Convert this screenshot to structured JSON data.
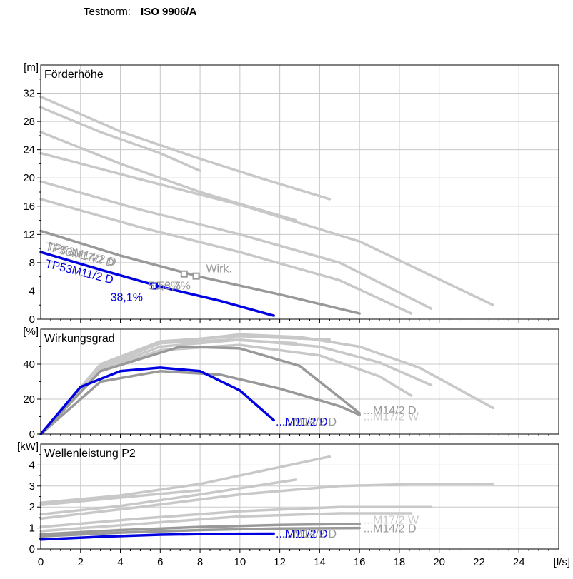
{
  "header": {
    "testnorm_label": "Testnorm:",
    "testnorm_value": "ISO 9906/A"
  },
  "colors": {
    "selected": "#0000e0",
    "compare": "#999999",
    "other": "#c8c8c8",
    "grid": "#c8c8c8",
    "axis": "#000000"
  },
  "chart_data": [
    {
      "type": "line",
      "title": "Förderhöhe",
      "ylabel": "[m]",
      "xlim": [
        0,
        26
      ],
      "ylim": [
        0,
        36
      ],
      "yticks": [
        0,
        4,
        8,
        12,
        16,
        20,
        24,
        28,
        32
      ],
      "grid": true,
      "series": [
        {
          "role": "other",
          "points": [
            [
              0,
              31.5
            ],
            [
              4,
              26.6
            ],
            [
              8,
              22.7
            ],
            [
              11,
              20
            ],
            [
              14.5,
              17
            ]
          ]
        },
        {
          "role": "other",
          "points": [
            [
              0,
              30
            ],
            [
              3,
              26.5
            ],
            [
              6,
              23.5
            ],
            [
              8,
              21
            ]
          ]
        },
        {
          "role": "other",
          "points": [
            [
              0,
              26.5
            ],
            [
              4,
              22
            ],
            [
              8,
              18
            ],
            [
              12.8,
              14
            ]
          ]
        },
        {
          "role": "other",
          "points": [
            [
              0,
              23.5
            ],
            [
              5,
              19.8
            ],
            [
              10,
              16.2
            ],
            [
              16,
              11
            ],
            [
              22.7,
              2
            ]
          ]
        },
        {
          "role": "other",
          "points": [
            [
              0,
              19.5
            ],
            [
              5,
              15.5
            ],
            [
              10,
              12
            ],
            [
              15,
              8
            ],
            [
              19.6,
              1.5
            ]
          ]
        },
        {
          "role": "other",
          "points": [
            [
              0,
              17
            ],
            [
              5,
              13
            ],
            [
              10,
              9.5
            ],
            [
              15,
              5.5
            ],
            [
              18.6,
              0.8
            ]
          ]
        },
        {
          "role": "compare",
          "points": [
            [
              0,
              12.5
            ],
            [
              4,
              9
            ],
            [
              8,
              6
            ],
            [
              12,
              3.5
            ],
            [
              16,
              0.8
            ]
          ]
        },
        {
          "role": "selected",
          "points": [
            [
              0,
              9.5
            ],
            [
              3,
              7
            ],
            [
              6,
              4.6
            ],
            [
              9,
              2.6
            ],
            [
              11.7,
              0.5
            ]
          ]
        }
      ],
      "annotations": [
        {
          "text": "TP53M17/2 D",
          "role": "compare",
          "x": 0.2,
          "y": 9.8,
          "rotate": 14
        },
        {
          "text": "TP53M14/2 D",
          "role": "compare",
          "x": 0.3,
          "y": 9.9,
          "rotate": 14
        },
        {
          "text": "TP53M11/2 D",
          "role": "selected",
          "x": 0.2,
          "y": 7.4,
          "rotate": 14
        },
        {
          "text": "Wirk.",
          "role": "compare",
          "x": 8.3,
          "y": 6.6,
          "rotate": 0
        },
        {
          "text": "50,6%",
          "role": "compare",
          "x": 5.4,
          "y": 4.2,
          "rotate": 0
        },
        {
          "text": "53,7%",
          "role": "compare",
          "x": 5.9,
          "y": 4.2,
          "rotate": 0
        },
        {
          "text": "38,1%",
          "role": "selected",
          "x": 3.5,
          "y": 2.6,
          "rotate": 0
        }
      ],
      "markers": [
        {
          "role": "compare",
          "x": 7.2,
          "y": 6.4
        },
        {
          "role": "compare",
          "x": 7.8,
          "y": 6.1
        },
        {
          "role": "selected",
          "x": 5.7,
          "y": 4.7
        }
      ]
    },
    {
      "type": "line",
      "title": "Wirkungsgrad",
      "ylabel": "[%]",
      "xlim": [
        0,
        26
      ],
      "ylim": [
        0,
        60
      ],
      "yticks": [
        0,
        20,
        40
      ],
      "grid": true,
      "series": [
        {
          "role": "other",
          "points": [
            [
              0,
              0
            ],
            [
              3,
              38
            ],
            [
              6,
              52
            ],
            [
              10,
              57
            ],
            [
              13,
              55.5
            ],
            [
              16,
              50
            ],
            [
              19,
              38
            ],
            [
              22.7,
              15
            ]
          ]
        },
        {
          "role": "other",
          "points": [
            [
              0,
              0
            ],
            [
              3,
              40
            ],
            [
              6,
              53
            ],
            [
              10,
              56
            ],
            [
              14.5,
              54
            ]
          ]
        },
        {
          "role": "other",
          "points": [
            [
              0,
              0
            ],
            [
              3,
              39
            ],
            [
              6,
              52
            ],
            [
              9.5,
              54
            ],
            [
              12.8,
              52
            ]
          ]
        },
        {
          "role": "other",
          "points": [
            [
              0,
              0
            ],
            [
              3,
              37
            ],
            [
              6,
              50
            ],
            [
              10,
              54
            ],
            [
              14,
              50
            ],
            [
              17,
              41
            ],
            [
              19.6,
              28
            ]
          ]
        },
        {
          "role": "other",
          "points": [
            [
              0,
              0
            ],
            [
              3,
              36
            ],
            [
              6,
              48
            ],
            [
              10,
              51
            ],
            [
              14,
              45
            ],
            [
              17,
              33
            ],
            [
              18.6,
              22
            ]
          ]
        },
        {
          "role": "compare",
          "points": [
            [
              0,
              0
            ],
            [
              3,
              36
            ],
            [
              7,
              50
            ],
            [
              10,
              49
            ],
            [
              13,
              39
            ],
            [
              16,
              12
            ]
          ]
        },
        {
          "role": "compare",
          "points": [
            [
              0,
              0
            ],
            [
              3,
              30
            ],
            [
              6,
              36
            ],
            [
              9,
              34
            ],
            [
              12,
              26
            ],
            [
              15,
              16
            ],
            [
              16,
              11
            ]
          ]
        },
        {
          "role": "selected",
          "points": [
            [
              0,
              0
            ],
            [
              2,
              27
            ],
            [
              4,
              36
            ],
            [
              6,
              38
            ],
            [
              8,
              36
            ],
            [
              10,
              25
            ],
            [
              11.7,
              8
            ]
          ]
        }
      ],
      "annotations": [
        {
          "text": "...M11/2 D",
          "role": "selected",
          "x": 11.8,
          "y": 5,
          "rotate": 0
        },
        {
          "text": "...M14/2 D",
          "role": "compare",
          "x": 12.2,
          "y": 5,
          "rotate": 0
        },
        {
          "text": "...M14/2 D",
          "role": "compare",
          "x": 16.2,
          "y": 11.5,
          "rotate": 0
        },
        {
          "text": "...M17/2 W",
          "role": "other",
          "x": 16.2,
          "y": 8,
          "rotate": 0
        }
      ],
      "markers": []
    },
    {
      "type": "line",
      "title": "Wellenleistung P2",
      "ylabel": "[kW]",
      "xlabel": "[l/s]",
      "xlim": [
        0,
        26
      ],
      "ylim": [
        0,
        5
      ],
      "yticks": [
        0,
        1,
        2,
        3,
        4
      ],
      "xticks": [
        0,
        2,
        4,
        6,
        8,
        10,
        12,
        14,
        16,
        18,
        20,
        22,
        24
      ],
      "grid": true,
      "series": [
        {
          "role": "other",
          "points": [
            [
              0,
              2.2
            ],
            [
              4,
              2.55
            ],
            [
              8,
              3.1
            ],
            [
              12,
              3.9
            ],
            [
              14.5,
              4.4
            ]
          ]
        },
        {
          "role": "other",
          "points": [
            [
              0,
              2.1
            ],
            [
              4,
              2.45
            ],
            [
              8,
              2.8
            ]
          ]
        },
        {
          "role": "other",
          "points": [
            [
              0,
              1.65
            ],
            [
              4,
              2.05
            ],
            [
              8,
              2.6
            ],
            [
              12.8,
              3.3
            ]
          ]
        },
        {
          "role": "other",
          "points": [
            [
              0,
              1.45
            ],
            [
              5,
              2.0
            ],
            [
              10,
              2.6
            ],
            [
              15,
              3.0
            ],
            [
              19,
              3.1
            ],
            [
              22.7,
              3.1
            ]
          ]
        },
        {
          "role": "other",
          "points": [
            [
              0,
              1.05
            ],
            [
              5,
              1.45
            ],
            [
              10,
              1.8
            ],
            [
              15,
              2.0
            ],
            [
              19.6,
              2.0
            ]
          ]
        },
        {
          "role": "other",
          "points": [
            [
              0,
              0.85
            ],
            [
              5,
              1.2
            ],
            [
              10,
              1.55
            ],
            [
              15,
              1.7
            ],
            [
              18.6,
              1.7
            ]
          ]
        },
        {
          "role": "compare",
          "points": [
            [
              0,
              0.7
            ],
            [
              4,
              0.9
            ],
            [
              8,
              1.05
            ],
            [
              12,
              1.15
            ],
            [
              16,
              1.2
            ]
          ]
        },
        {
          "role": "compare",
          "points": [
            [
              0,
              0.6
            ],
            [
              4,
              0.78
            ],
            [
              8,
              0.9
            ],
            [
              12,
              0.98
            ],
            [
              16,
              1.0
            ]
          ]
        },
        {
          "role": "selected",
          "points": [
            [
              0,
              0.45
            ],
            [
              3,
              0.58
            ],
            [
              6,
              0.68
            ],
            [
              9,
              0.72
            ],
            [
              11.7,
              0.73
            ]
          ]
        }
      ],
      "annotations": [
        {
          "text": "...M11/2 D",
          "role": "selected",
          "x": 11.8,
          "y": 0.55,
          "rotate": 0
        },
        {
          "text": "...M14/2 D",
          "role": "compare",
          "x": 12.2,
          "y": 0.55,
          "rotate": 0
        },
        {
          "text": "...M14/2 D",
          "role": "compare",
          "x": 16.2,
          "y": 0.8,
          "rotate": 0
        },
        {
          "text": "...M17/2 W",
          "role": "other",
          "x": 16.2,
          "y": 1.2,
          "rotate": 0
        }
      ],
      "markers": []
    }
  ]
}
